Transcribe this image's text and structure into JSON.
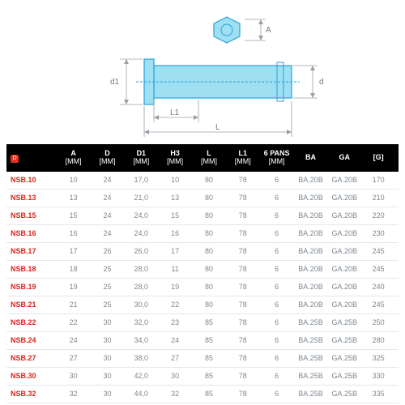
{
  "diagram": {
    "shape_fill": "#9edff2",
    "shape_stroke": "#2aa2d6",
    "dim_color": "#707880",
    "labels": {
      "A": "A",
      "d": "d",
      "d1": "d1",
      "L": "L",
      "L1": "L1"
    }
  },
  "table": {
    "ref_icon_color": "#e03224",
    "ref_link_color": "#d9241c",
    "header_bg": "#000000",
    "header_fg": "#ffffff",
    "row_border": "#e5e7eb",
    "text_color": "#808890",
    "columns": [
      {
        "key": "ref",
        "l1": "",
        "l2": ""
      },
      {
        "key": "a",
        "l1": "A",
        "l2": "[MM]"
      },
      {
        "key": "d",
        "l1": "D",
        "l2": "[MM]"
      },
      {
        "key": "d1",
        "l1": "D1",
        "l2": "[MM]"
      },
      {
        "key": "h3",
        "l1": "H3",
        "l2": "[MM]"
      },
      {
        "key": "l",
        "l1": "L",
        "l2": "[MM]"
      },
      {
        "key": "l1",
        "l1": "L1",
        "l2": "[MM]"
      },
      {
        "key": "p6",
        "l1": "6 PANS",
        "l2": "[MM]"
      },
      {
        "key": "ba",
        "l1": "BA",
        "l2": ""
      },
      {
        "key": "ga",
        "l1": "GA",
        "l2": ""
      },
      {
        "key": "g",
        "l1": "[G]",
        "l2": ""
      }
    ],
    "rows": [
      {
        "ref": "NSB.10",
        "a": "10",
        "d": "24",
        "d1": "17,0",
        "h3": "10",
        "l": "80",
        "l1": "78",
        "p6": "6",
        "ba": "BA.20B",
        "ga": "GA.20B",
        "g": "170"
      },
      {
        "ref": "NSB.13",
        "a": "13",
        "d": "24",
        "d1": "21,0",
        "h3": "13",
        "l": "80",
        "l1": "78",
        "p6": "6",
        "ba": "BA.20B",
        "ga": "GA.20B",
        "g": "210"
      },
      {
        "ref": "NSB.15",
        "a": "15",
        "d": "24",
        "d1": "24,0",
        "h3": "15",
        "l": "80",
        "l1": "78",
        "p6": "6",
        "ba": "BA.20B",
        "ga": "GA.20B",
        "g": "220"
      },
      {
        "ref": "NSB.16",
        "a": "16",
        "d": "24",
        "d1": "24,0",
        "h3": "16",
        "l": "80",
        "l1": "78",
        "p6": "6",
        "ba": "BA.20B",
        "ga": "GA.20B",
        "g": "230"
      },
      {
        "ref": "NSB.17",
        "a": "17",
        "d": "26",
        "d1": "26,0",
        "h3": "17",
        "l": "80",
        "l1": "78",
        "p6": "6",
        "ba": "BA.20B",
        "ga": "GA.20B",
        "g": "245"
      },
      {
        "ref": "NSB.18",
        "a": "18",
        "d": "25",
        "d1": "28,0",
        "h3": "11",
        "l": "80",
        "l1": "78",
        "p6": "6",
        "ba": "BA.20B",
        "ga": "GA.20B",
        "g": "245"
      },
      {
        "ref": "NSB.19",
        "a": "19",
        "d": "25",
        "d1": "28,0",
        "h3": "19",
        "l": "80",
        "l1": "78",
        "p6": "6",
        "ba": "BA.20B",
        "ga": "GA.20B",
        "g": "240"
      },
      {
        "ref": "NSB.21",
        "a": "21",
        "d": "25",
        "d1": "30,0",
        "h3": "22",
        "l": "80",
        "l1": "78",
        "p6": "6",
        "ba": "BA.20B",
        "ga": "GA.20B",
        "g": "245"
      },
      {
        "ref": "NSB.22",
        "a": "22",
        "d": "30",
        "d1": "32,0",
        "h3": "23",
        "l": "85",
        "l1": "78",
        "p6": "6",
        "ba": "BA.25B",
        "ga": "GA.25B",
        "g": "250"
      },
      {
        "ref": "NSB.24",
        "a": "24",
        "d": "30",
        "d1": "34,0",
        "h3": "24",
        "l": "85",
        "l1": "78",
        "p6": "6",
        "ba": "BA.25B",
        "ga": "GA.25B",
        "g": "280"
      },
      {
        "ref": "NSB.27",
        "a": "27",
        "d": "30",
        "d1": "38,0",
        "h3": "27",
        "l": "85",
        "l1": "78",
        "p6": "6",
        "ba": "BA.25B",
        "ga": "GA.25B",
        "g": "325"
      },
      {
        "ref": "NSB.30",
        "a": "30",
        "d": "30",
        "d1": "42,0",
        "h3": "30",
        "l": "85",
        "l1": "78",
        "p6": "6",
        "ba": "BA.25B",
        "ga": "GA.25B",
        "g": "330"
      },
      {
        "ref": "NSB.32",
        "a": "32",
        "d": "30",
        "d1": "44,0",
        "h3": "32",
        "l": "85",
        "l1": "78",
        "p6": "6",
        "ba": "BA.25B",
        "ga": "GA.25B",
        "g": "335"
      }
    ]
  }
}
